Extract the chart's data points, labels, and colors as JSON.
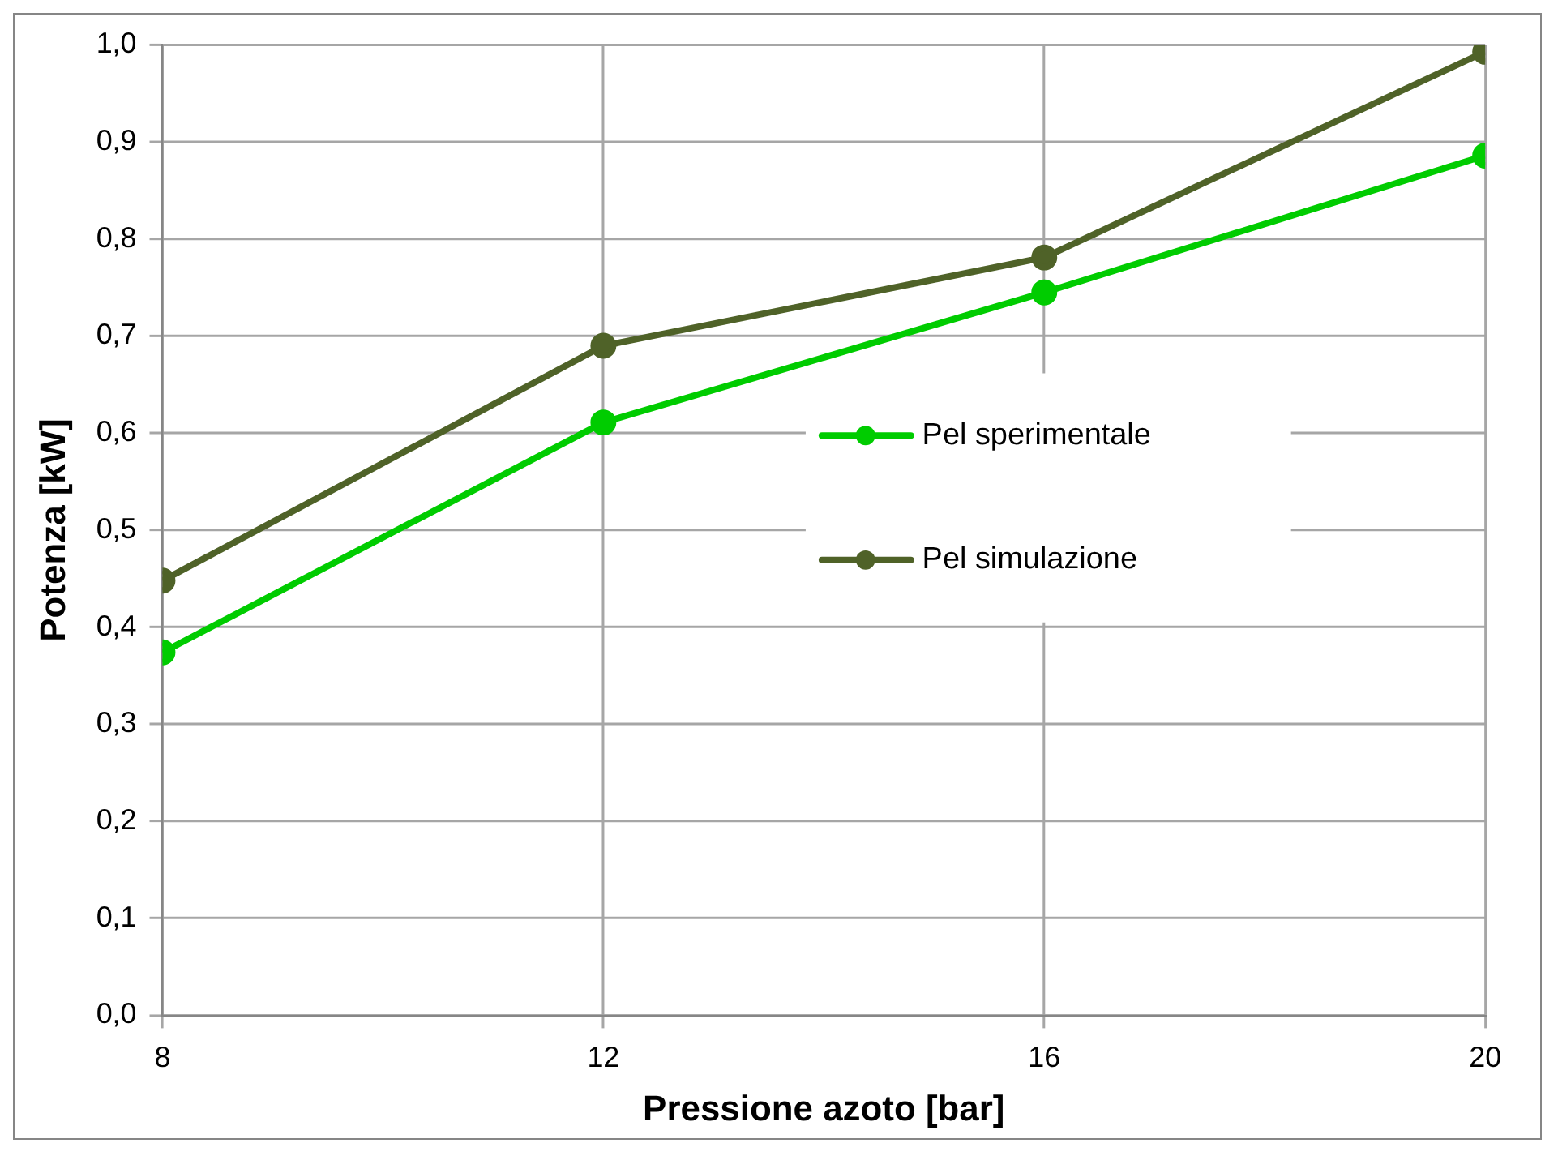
{
  "chart_data": {
    "type": "line",
    "xlabel": "Pressione azoto [bar]",
    "ylabel": "Potenza [kW]",
    "x": [
      8,
      12,
      16,
      20
    ],
    "series": [
      {
        "name": "Pel sperimentale",
        "color": "#00cc00",
        "values": [
          0.374,
          0.611,
          0.745,
          0.886
        ]
      },
      {
        "name": "Pel simulazione",
        "color": "#4f6228",
        "values": [
          0.448,
          0.69,
          0.781,
          0.993
        ]
      }
    ],
    "xlim": [
      8,
      20
    ],
    "xticks": [
      8,
      12,
      16,
      20
    ],
    "ylim": [
      0,
      1
    ],
    "yticks": [
      {
        "value": 0,
        "label": "0,0"
      },
      {
        "value": 0.1,
        "label": "0,1"
      },
      {
        "value": 0.2,
        "label": "0,2"
      },
      {
        "value": 0.3,
        "label": "0,3"
      },
      {
        "value": 0.4,
        "label": "0,4"
      },
      {
        "value": 0.5,
        "label": "0,5"
      },
      {
        "value": 0.6,
        "label": "0,6"
      },
      {
        "value": 0.7,
        "label": "0,7"
      },
      {
        "value": 0.8,
        "label": "0,8"
      },
      {
        "value": 0.9,
        "label": "0,9"
      },
      {
        "value": 1,
        "label": "1,0"
      }
    ],
    "grid": true,
    "legend": "right",
    "marker": "circle"
  }
}
